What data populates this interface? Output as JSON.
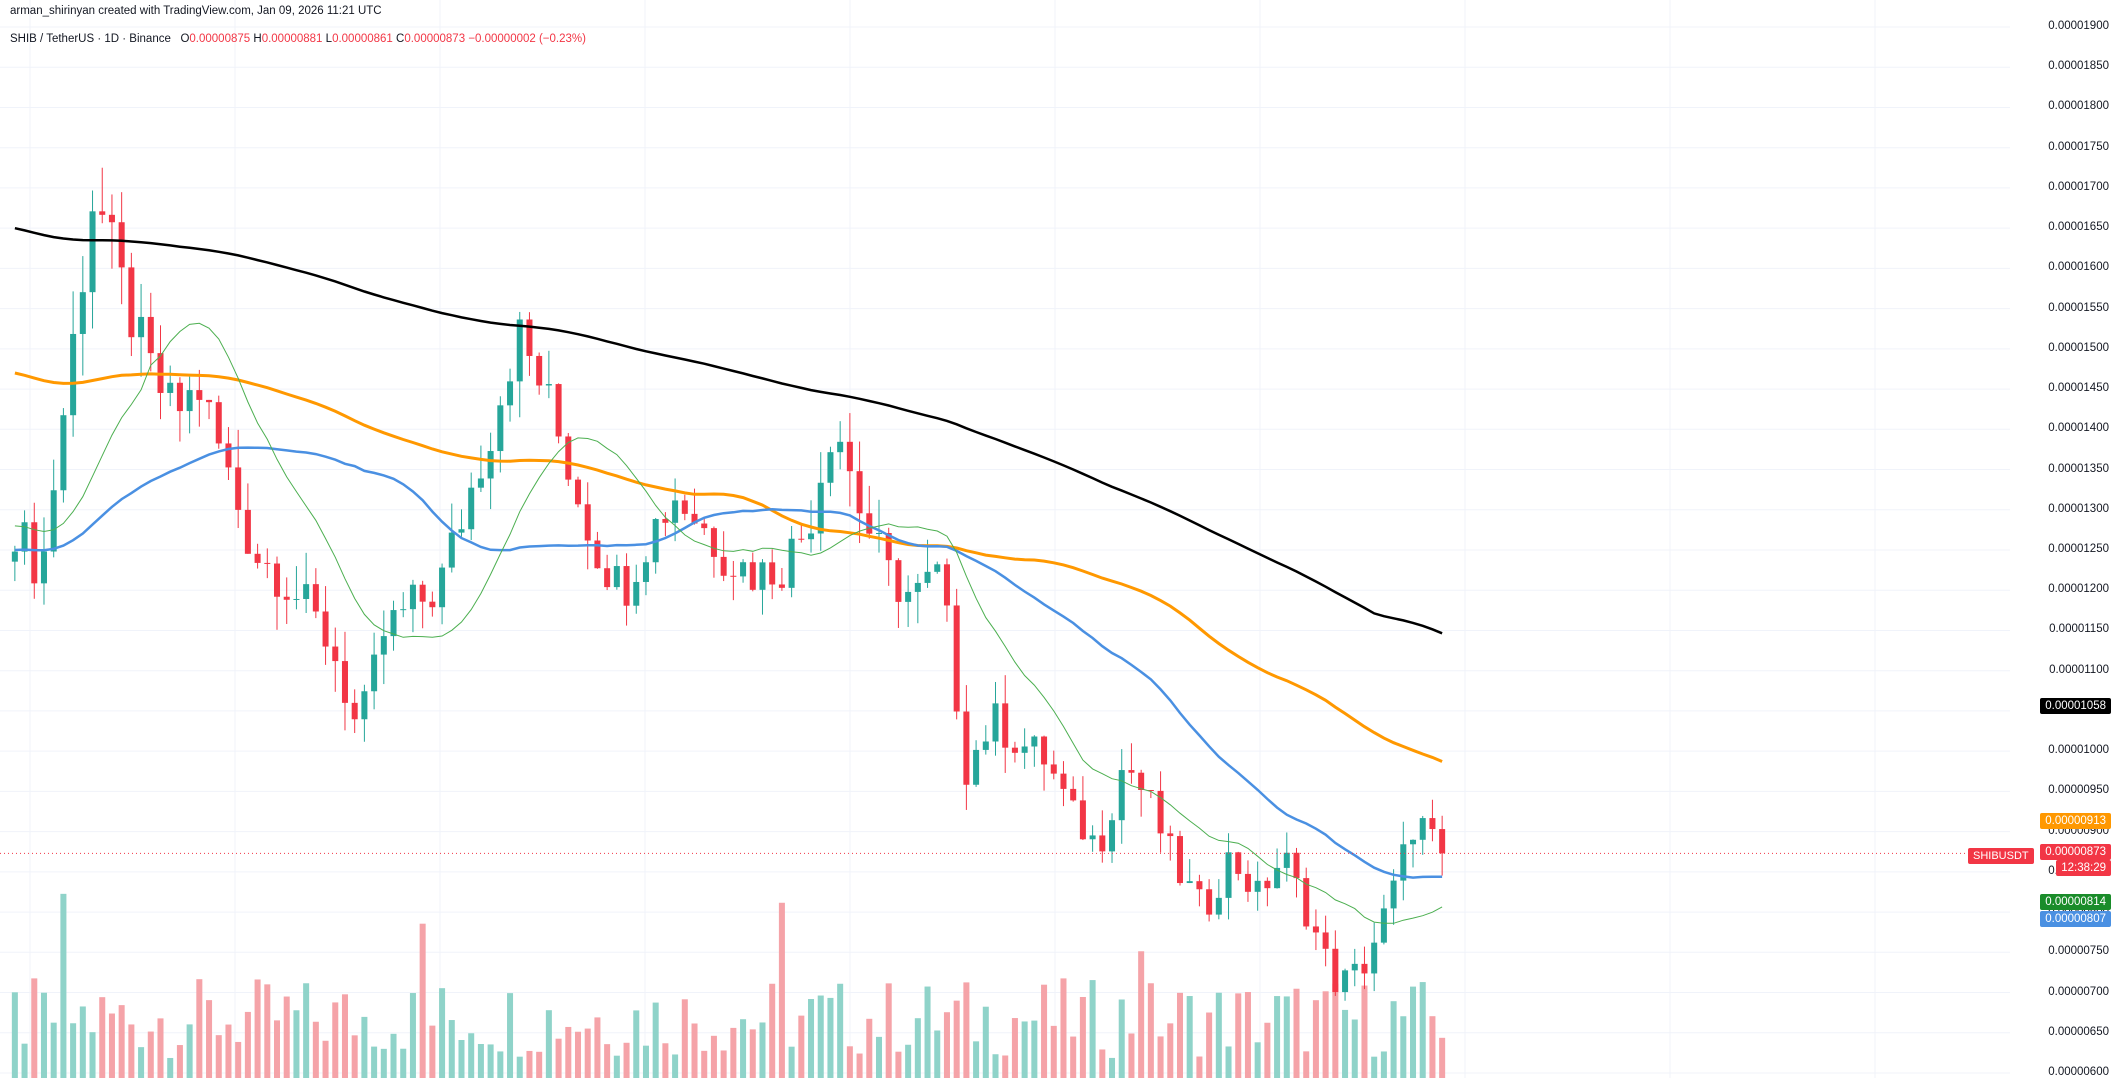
{
  "header": {
    "credit": "arman_shirinyan created with TradingView.com, Jan 09, 2026 11:21 UTC",
    "symbol": "SHIB / TetherUS · 1D · Binance",
    "o_label": "O",
    "o": "0.00000875",
    "h_label": "H",
    "h": "0.00000881",
    "l_label": "L",
    "l": "0.00000861",
    "c_label": "C",
    "c": "0.00000873",
    "change": "−0.00000002 (−0.23%)"
  },
  "price_axis": {
    "ticks": [
      "0.00001900",
      "0.00001850",
      "0.00001800",
      "0.00001750",
      "0.00001700",
      "0.00001650",
      "0.00001600",
      "0.00001550",
      "0.00001500",
      "0.00001450",
      "0.00001400",
      "0.00001350",
      "0.00001300",
      "0.00001250",
      "0.00001200",
      "0.00001150",
      "0.00001100",
      "0.00001050",
      "0.00001000",
      "0.00000950",
      "0.00000900",
      "0.00000850",
      "0.00000800",
      "0.00000750",
      "0.00000700",
      "0.00000650",
      "0.00000600"
    ]
  },
  "badges": {
    "ma200": "0.00001058",
    "ma100": "0.00000913",
    "last_price": "0.00000873",
    "countdown": "12:38:29",
    "symbol": "SHIBUSDT",
    "ma20": "0.00000814",
    "ma50": "0.00000807"
  },
  "colors": {
    "up": "#26a69a",
    "down": "#f23645",
    "vol_up": "#8fd3c9",
    "vol_down": "#f5a3a8",
    "ma200": "#000000",
    "ma100": "#ff9800",
    "ma50": "#4a90e2",
    "ma20": "#4caf50"
  },
  "chart_data": {
    "type": "candlestick",
    "title": "SHIB / TetherUS · 1D · Binance",
    "ylim": [
      6e-06,
      1.9e-05
    ],
    "ohlc_sample_count": 148,
    "closes_sampled": [
      1.28e-05,
      1.22e-05,
      1.46e-05,
      1.7e-05,
      1.58e-05,
      1.48e-05,
      1.42e-05,
      1.45e-05,
      1.35e-05,
      1.25e-05,
      1.22e-05,
      1.18e-05,
      1.13e-05,
      1.02e-05,
      1.15e-05,
      1.18e-05,
      1.2e-05,
      1.3e-05,
      1.4e-05,
      1.52e-05,
      1.45e-05,
      1.35e-05,
      1.25e-05,
      1.2e-05,
      1.27e-05,
      1.32e-05,
      1.28e-05,
      1.24e-05,
      1.22e-05,
      1.23e-05,
      1.28e-05,
      1.42e-05,
      1.3e-05,
      1.22e-05,
      1.19e-05,
      1.22e-05,
      9.8e-06,
      1.04e-05,
      1.01e-05,
      9.9e-06,
      9.2e-06,
      8.8e-06,
      9.9e-06,
      9.3e-06,
      8.5e-06,
      8e-06,
      8.7e-06,
      8.2e-06,
      8.7e-06,
      7.9e-06,
      7.1e-06,
      7.3e-06,
      8.1e-06,
      9.2e-06,
      8.7e-06
    ],
    "series": [
      {
        "name": "MA 200",
        "last": 1.058e-05
      },
      {
        "name": "MA 100",
        "last": 9.13e-06
      },
      {
        "name": "MA 50",
        "last": 8.07e-06
      },
      {
        "name": "MA 20",
        "last": 8.14e-06
      },
      {
        "name": "Volume",
        "last": "n/a"
      }
    ]
  }
}
